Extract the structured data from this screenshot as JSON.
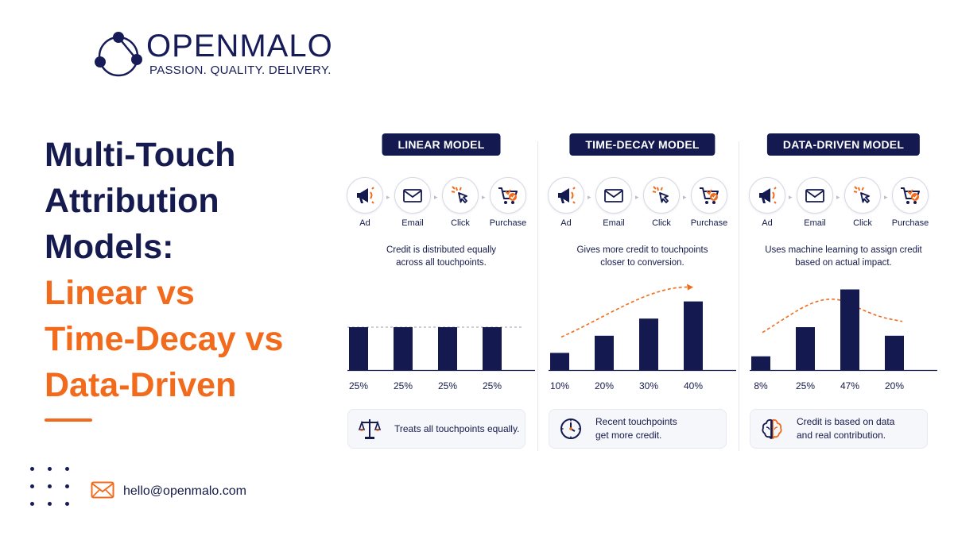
{
  "brand": {
    "name": "OPENMALO",
    "tagline": "PASSION. QUALITY. DELIVERY."
  },
  "headline": {
    "navy_lines": [
      "Multi-Touch",
      "Attribution",
      "Models:"
    ],
    "orange_lines": [
      "Linear vs",
      "Time-Decay vs",
      "Data-Driven"
    ]
  },
  "contact": {
    "email": "hello@openmalo.com"
  },
  "colors": {
    "navy": "#141a50",
    "orange": "#f26b1d"
  },
  "touchpoints": [
    {
      "label": "Ad",
      "icon": "megaphone-icon"
    },
    {
      "label": "Email",
      "icon": "envelope-icon"
    },
    {
      "label": "Click",
      "icon": "cursor-click-icon"
    },
    {
      "label": "Purchase",
      "icon": "cart-icon"
    }
  ],
  "chart_data": [
    {
      "type": "bar",
      "title": "LINEAR MODEL",
      "description": "Credit is distributed equally across all touchpoints.",
      "description_lines": [
        "Credit is distributed equally",
        "across all touchpoints."
      ],
      "categories": [
        "Ad",
        "Email",
        "Click",
        "Purchase"
      ],
      "values": [
        25,
        25,
        25,
        25
      ],
      "data_labels": [
        "25%",
        "25%",
        "25%",
        "25%"
      ],
      "ylim": [
        0,
        50
      ],
      "trend": "flat-dashed",
      "callout": {
        "icon": "scale-icon",
        "lines": [
          "Treats all touchpoints equally."
        ]
      }
    },
    {
      "type": "bar",
      "title": "TIME-DECAY MODEL",
      "description": "Gives more credit to touchpoints closer to conversion.",
      "description_lines": [
        "Gives more credit to touchpoints",
        "closer to conversion."
      ],
      "categories": [
        "Ad",
        "Email",
        "Click",
        "Purchase"
      ],
      "values": [
        10,
        20,
        30,
        40
      ],
      "data_labels": [
        "10%",
        "20%",
        "30%",
        "40%"
      ],
      "ylim": [
        0,
        50
      ],
      "trend": "rising-arrow",
      "callout": {
        "icon": "clock-icon",
        "lines": [
          "Recent touchpoints",
          "get more credit."
        ]
      }
    },
    {
      "type": "bar",
      "title": "DATA-DRIVEN MODEL",
      "description": "Uses machine learning to assign credit based on actual impact.",
      "description_lines": [
        "Uses machine learning to assign credit",
        "based on actual impact."
      ],
      "categories": [
        "Ad",
        "Email",
        "Click",
        "Purchase"
      ],
      "values": [
        8,
        25,
        47,
        20
      ],
      "data_labels": [
        "8%",
        "25%",
        "47%",
        "20%"
      ],
      "ylim": [
        0,
        50
      ],
      "trend": "curve",
      "callout": {
        "icon": "brain-icon",
        "lines": [
          "Credit is based on data",
          "and real contribution."
        ]
      }
    }
  ]
}
